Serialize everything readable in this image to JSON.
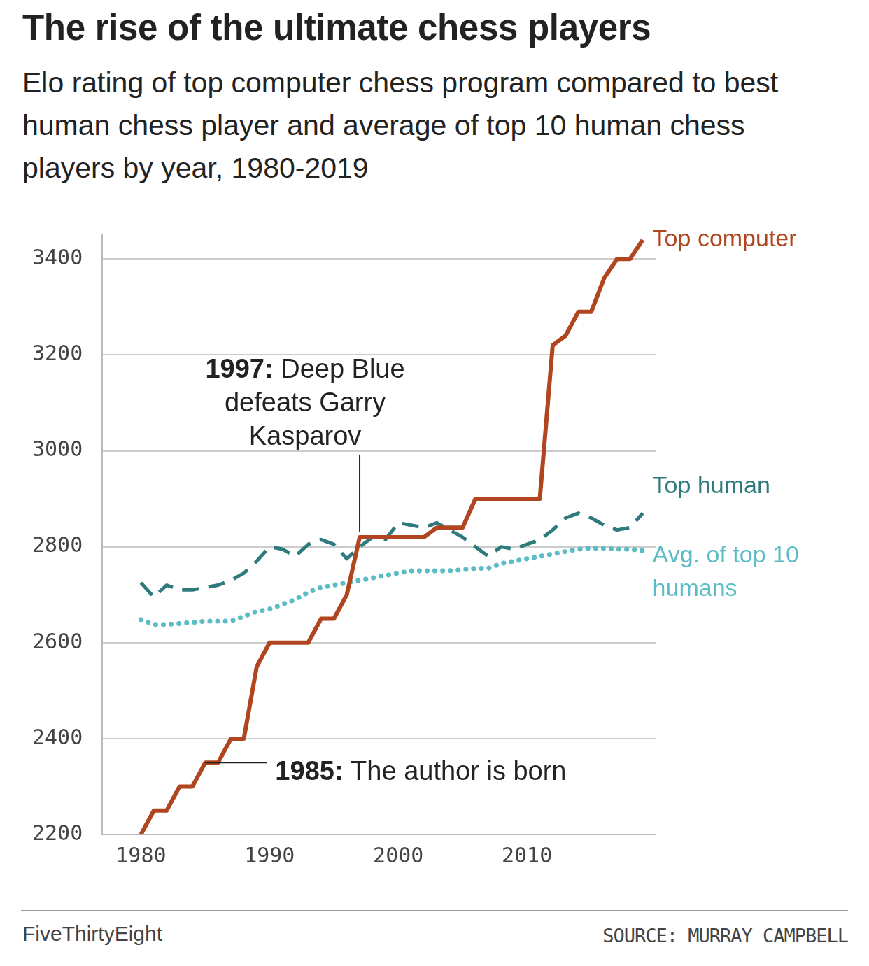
{
  "chart_data": {
    "type": "line",
    "title": "The rise of the ultimate chess players",
    "subtitle": "Elo rating of top computer chess program compared to best human chess player and average of top 10 human chess players by year, 1980-2019",
    "x": [
      1980,
      1981,
      1982,
      1983,
      1984,
      1985,
      1986,
      1987,
      1988,
      1989,
      1990,
      1991,
      1992,
      1993,
      1994,
      1995,
      1996,
      1997,
      1998,
      1999,
      2000,
      2001,
      2002,
      2003,
      2004,
      2005,
      2006,
      2007,
      2008,
      2009,
      2010,
      2011,
      2012,
      2013,
      2014,
      2015,
      2016,
      2017,
      2018,
      2019
    ],
    "series": [
      {
        "name": "Top computer",
        "color": "#b0451f",
        "line_style": "solid",
        "values": [
          2200,
          2250,
          2250,
          2300,
          2300,
          2350,
          2350,
          2400,
          2400,
          2550,
          2600,
          2600,
          2600,
          2600,
          2650,
          2650,
          2700,
          2820,
          2820,
          2820,
          2820,
          2820,
          2820,
          2840,
          2840,
          2840,
          2900,
          2900,
          2900,
          2900,
          2900,
          2900,
          3220,
          3240,
          3290,
          3290,
          3360,
          3400,
          3400,
          3440
        ]
      },
      {
        "name": "Top human",
        "color": "#2e7a7c",
        "line_style": "dashed",
        "values": [
          2725,
          2695,
          2720,
          2710,
          2710,
          2715,
          2720,
          2730,
          2745,
          2770,
          2800,
          2795,
          2780,
          2805,
          2815,
          2805,
          2775,
          2800,
          2820,
          2815,
          2850,
          2845,
          2840,
          2850,
          2835,
          2820,
          2800,
          2780,
          2800,
          2795,
          2805,
          2815,
          2835,
          2860,
          2870,
          2860,
          2845,
          2835,
          2840,
          2870
        ]
      },
      {
        "name": "Avg. of top 10 humans",
        "color": "#5bbcc6",
        "line_style": "dotted",
        "values": [
          2648,
          2638,
          2638,
          2640,
          2642,
          2645,
          2645,
          2645,
          2655,
          2665,
          2670,
          2680,
          2690,
          2705,
          2715,
          2720,
          2725,
          2730,
          2735,
          2740,
          2745,
          2750,
          2750,
          2750,
          2750,
          2752,
          2755,
          2755,
          2765,
          2770,
          2775,
          2780,
          2785,
          2790,
          2795,
          2797,
          2797,
          2795,
          2795,
          2792
        ]
      }
    ],
    "xlim": [
      1977,
      2020
    ],
    "xticks": [
      1980,
      1990,
      2000,
      2010
    ],
    "ylim": [
      2200,
      3450
    ],
    "yticks": [
      2200,
      2400,
      2600,
      2800,
      3000,
      3200,
      3400
    ],
    "grid": "y",
    "annotations": [
      {
        "label": "1997:",
        "text": "Deep Blue defeats Garry Kasparov",
        "x": 1997,
        "y": 2820
      },
      {
        "label": "1985:",
        "text": "The author is born",
        "x": 1985,
        "y": 2350
      }
    ],
    "credit": "FiveThirtyEight",
    "source": "SOURCE: MURRAY CAMPBELL"
  }
}
